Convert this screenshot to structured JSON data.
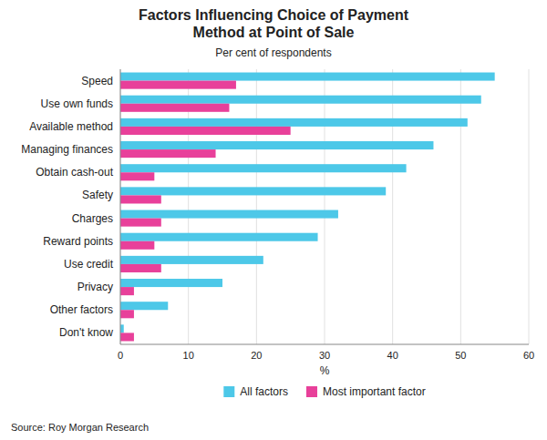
{
  "chart_data": {
    "type": "bar",
    "orientation": "horizontal",
    "title": "Factors Influencing Choice of Payment\nMethod at Point of Sale",
    "subtitle": "Per cent of respondents",
    "x_label": "%",
    "source": "Source: Roy Morgan Research",
    "categories": [
      "Speed",
      "Use own funds",
      "Available method",
      "Managing finances",
      "Obtain cash-out",
      "Safety",
      "Charges",
      "Reward points",
      "Use credit",
      "Privacy",
      "Other factors",
      "Don't know"
    ],
    "series": [
      {
        "name": "All factors",
        "color": "#4DC8E8",
        "values": [
          55,
          53,
          51,
          46,
          42,
          39,
          32,
          29,
          21,
          15,
          7,
          0.5
        ]
      },
      {
        "name": "Most important factor",
        "color": "#E8409A",
        "values": [
          17,
          16,
          25,
          14,
          5,
          6,
          6,
          5,
          6,
          2,
          2,
          2
        ]
      }
    ],
    "xlim": [
      0,
      60
    ],
    "xticks": [
      0,
      10,
      20,
      30,
      40,
      50,
      60
    ],
    "grid": true,
    "legend": "bottom"
  }
}
